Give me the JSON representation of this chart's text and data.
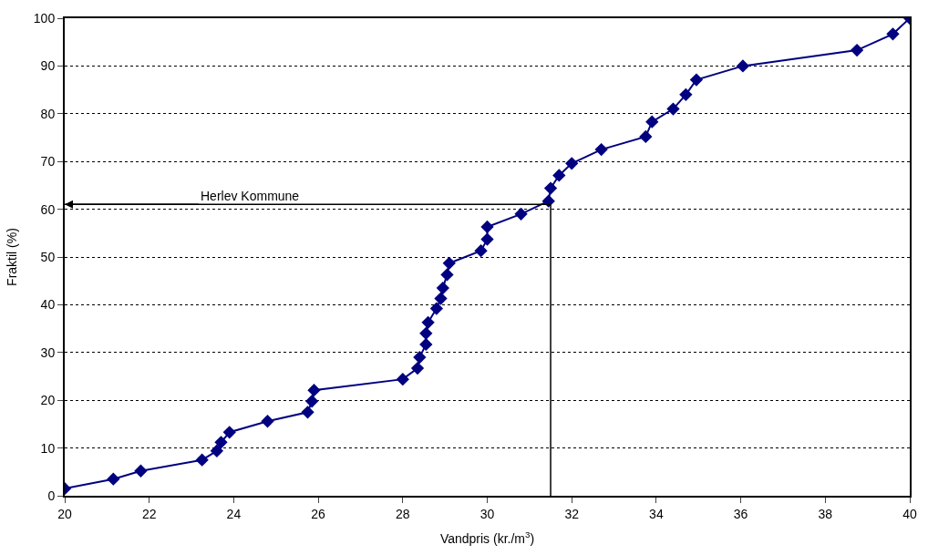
{
  "chart_data": {
    "type": "line",
    "xlabel": "Vandpris (kr./m$^{3}$)",
    "ylabel": "Fraktil (%)",
    "x": [
      20.0,
      21.15,
      21.8,
      23.25,
      23.6,
      23.7,
      23.9,
      24.8,
      25.75,
      25.85,
      25.9,
      28.0,
      28.35,
      28.4,
      28.55,
      28.55,
      28.6,
      28.8,
      28.9,
      28.95,
      29.05,
      29.1,
      29.85,
      30.0,
      30.0,
      30.8,
      31.45,
      31.5,
      31.7,
      32.0,
      32.7,
      33.75,
      33.9,
      34.4,
      34.7,
      34.95,
      36.05,
      38.75,
      39.6,
      40.0
    ],
    "series": [
      {
        "color": "#000080",
        "values": [
          1.5,
          3.5,
          5.2,
          7.5,
          9.4,
          11.2,
          13.3,
          15.6,
          17.5,
          19.8,
          22.1,
          24.4,
          26.7,
          29.0,
          31.7,
          34.0,
          36.3,
          39.2,
          41.3,
          43.5,
          46.3,
          48.7,
          51.3,
          53.7,
          56.3,
          59.0,
          61.7,
          64.4,
          67.1,
          69.6,
          72.5,
          75.2,
          78.3,
          81.0,
          84.0,
          87.1,
          90.0,
          93.3,
          96.7,
          100.0
        ]
      }
    ],
    "xlim": [
      20,
      40
    ],
    "xticks": [
      20,
      22,
      24,
      26,
      28,
      30,
      32,
      34,
      36,
      38,
      40
    ],
    "ylim": [
      0,
      100
    ],
    "yticks": [
      0,
      10,
      20,
      30,
      40,
      50,
      60,
      70,
      80,
      90,
      100
    ],
    "ref_lines": [
      {
        "axis": "x",
        "value": 31.5,
        "color": "#000000"
      },
      {
        "axis": "y",
        "value": 61,
        "label": "Herlev Kommune",
        "color": "#000000"
      }
    ],
    "grid": "y",
    "marker": "diamond",
    "line_style": "solid"
  }
}
